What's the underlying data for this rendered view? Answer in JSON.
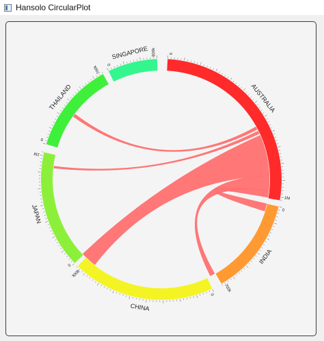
{
  "window": {
    "title": "Hansolo CircularPlot"
  },
  "plot": {
    "segments": [
      {
        "name": "AUSTRALIA",
        "color": "#ff2a2a",
        "start_tick": "0",
        "end_tick": "1M"
      },
      {
        "name": "INDIA",
        "color": "#ff9a33",
        "start_tick": "0",
        "end_tick": "700k"
      },
      {
        "name": "CHINA",
        "color": "#f4f424",
        "start_tick": "0",
        "end_tick": "900k"
      },
      {
        "name": "JAPAN",
        "color": "#8cf03a",
        "start_tick": "0",
        "end_tick": "1M"
      },
      {
        "name": "THAILAND",
        "color": "#3ef03a",
        "start_tick": "0",
        "end_tick": "700k"
      },
      {
        "name": "SINGAPORE",
        "color": "#33f78e",
        "start_tick": "0",
        "end_tick": "800k"
      }
    ],
    "connection_color": "#ff7070"
  }
}
